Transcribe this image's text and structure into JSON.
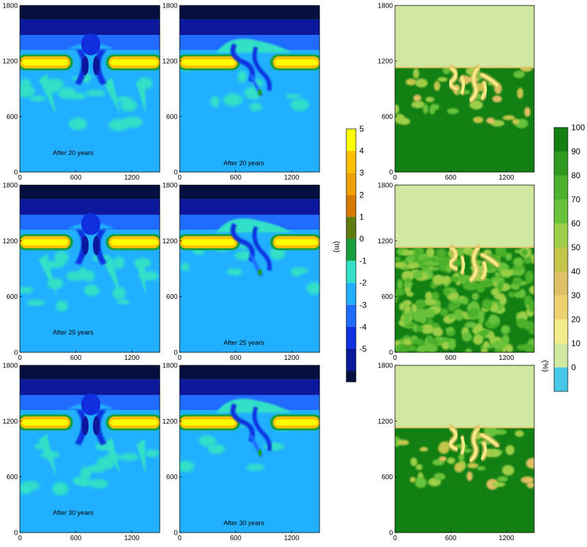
{
  "chart_data": {
    "type": "heatmap",
    "panel_grid": {
      "rows": 3,
      "columns": 3
    },
    "x_axis": {
      "range": [
        0,
        1500
      ],
      "ticks": [
        0,
        600,
        1200
      ]
    },
    "y_axis": {
      "range": [
        0,
        1800
      ],
      "ticks": [
        0,
        600,
        1200,
        1800
      ]
    },
    "panels": [
      {
        "row": 0,
        "col": 0,
        "variable": "head",
        "label": "After 20 years"
      },
      {
        "row": 0,
        "col": 1,
        "variable": "head",
        "label": "After 20 years"
      },
      {
        "row": 0,
        "col": 2,
        "variable": "percent",
        "label": ""
      },
      {
        "row": 1,
        "col": 0,
        "variable": "head",
        "label": "After 25 years"
      },
      {
        "row": 1,
        "col": 1,
        "variable": "head",
        "label": "After 25 years"
      },
      {
        "row": 1,
        "col": 2,
        "variable": "percent",
        "label": ""
      },
      {
        "row": 2,
        "col": 0,
        "variable": "head",
        "label": "After 30 years"
      },
      {
        "row": 2,
        "col": 1,
        "variable": "head",
        "label": "After 30 years"
      },
      {
        "row": 2,
        "col": 2,
        "variable": "percent",
        "label": ""
      }
    ],
    "colorbars": [
      {
        "name": "head",
        "unit_label": "(m)",
        "levels": [
          5,
          4,
          3,
          2,
          1,
          0,
          -1,
          -2,
          -3,
          -4,
          -5
        ],
        "colors": [
          "#ffff00",
          "#ffc000",
          "#f0a000",
          "#d77a00",
          "#5f7a10",
          "#18a040",
          "#33e0c8",
          "#20b0ff",
          "#1f6cff",
          "#1030e0",
          "#0a1899",
          "#05103f"
        ]
      },
      {
        "name": "percent",
        "unit_label": "(%)",
        "levels": [
          100,
          90,
          80,
          70,
          60,
          50,
          40,
          30,
          20,
          10,
          0
        ],
        "colors": [
          "#127f12",
          "#2e9a1e",
          "#4cb12c",
          "#68c23a",
          "#9ccf47",
          "#c4c64c",
          "#dfc064",
          "#ecd370",
          "#f4ec88",
          "#d0e8a0",
          "#48c8e8"
        ]
      }
    ]
  }
}
